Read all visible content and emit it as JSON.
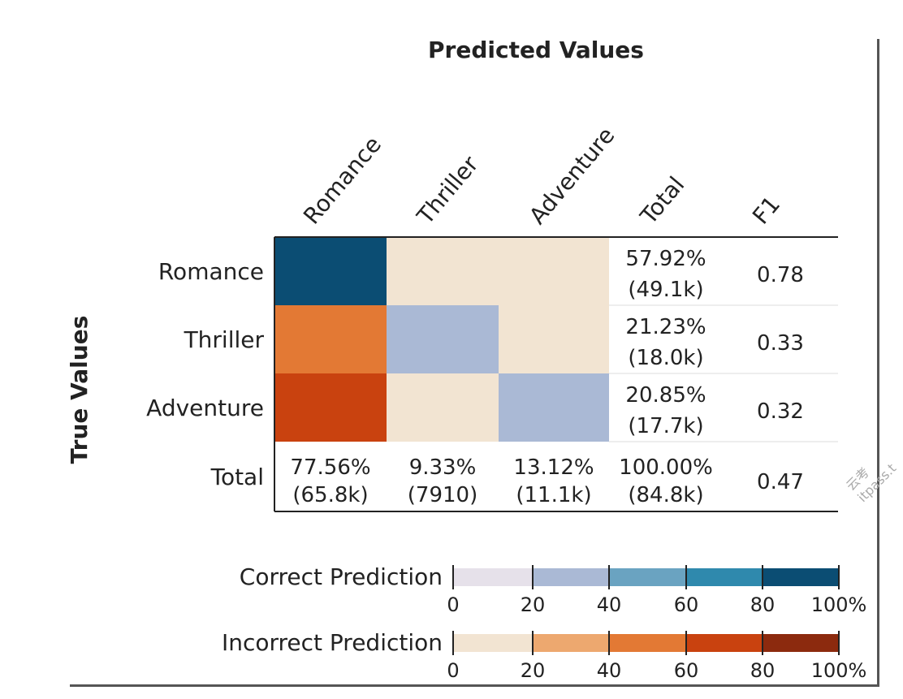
{
  "chart_data": {
    "type": "heatmap",
    "title": "Predicted Values",
    "ylabel": "True Values",
    "columns": [
      "Romance",
      "Thriller",
      "Adventure",
      "Total",
      "F1"
    ],
    "rows": [
      "Romance",
      "Thriller",
      "Adventure",
      "Total"
    ],
    "matrix_colors": [
      [
        "#0b4d73",
        "#f2e4d2",
        "#f2e4d2"
      ],
      [
        "#e37934",
        "#aab9d5",
        "#f2e4d2"
      ],
      [
        "#c9420f",
        "#f2e4d2",
        "#aab9d5"
      ]
    ],
    "row_totals": [
      {
        "pct": "57.92%",
        "count": "(49.1k)",
        "f1": "0.78"
      },
      {
        "pct": "21.23%",
        "count": "(18.0k)",
        "f1": "0.33"
      },
      {
        "pct": "20.85%",
        "count": "(17.7k)",
        "f1": "0.32"
      }
    ],
    "column_totals": [
      {
        "pct": "77.56%",
        "count": "(65.8k)"
      },
      {
        "pct": "9.33%",
        "count": "(7910)"
      },
      {
        "pct": "13.12%",
        "count": "(11.1k)"
      },
      {
        "pct": "100.00%",
        "count": "(84.8k)"
      }
    ],
    "overall_f1": "0.47",
    "legends": [
      {
        "label": "Correct Prediction",
        "colors": [
          "#e6e1ea",
          "#aab9d5",
          "#6aa3c1",
          "#2f89ad",
          "#0b4d73"
        ]
      },
      {
        "label": "Incorrect Prediction",
        "colors": [
          "#f2e4d2",
          "#eda86f",
          "#e37934",
          "#c9420f",
          "#8c2a0e"
        ]
      }
    ],
    "legend_ticks": [
      "0",
      "20",
      "40",
      "60",
      "80",
      "100%"
    ]
  },
  "watermark": "云考 itpass.t"
}
